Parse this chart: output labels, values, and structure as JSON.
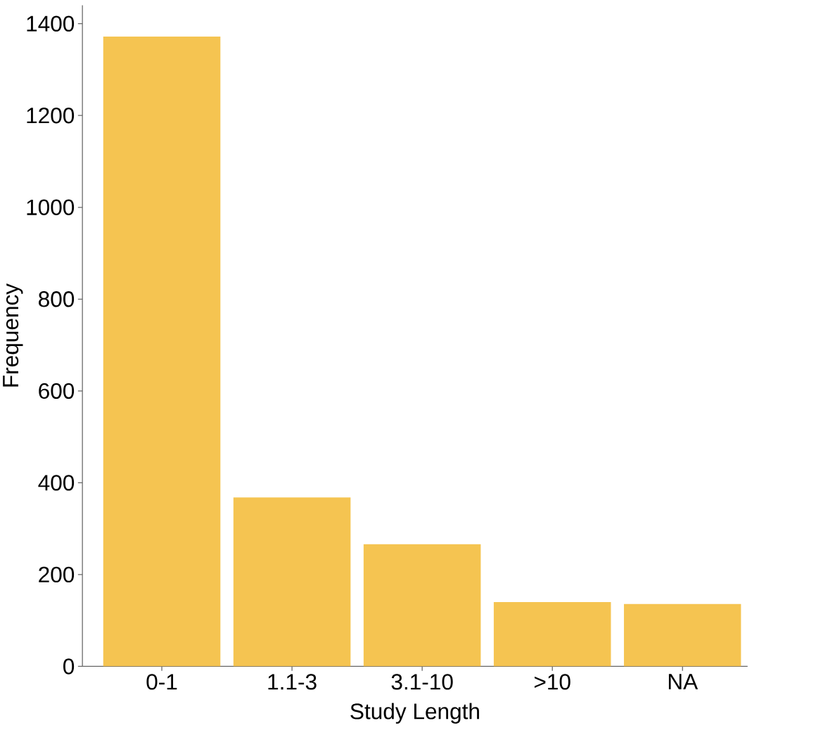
{
  "chart_data": {
    "type": "bar",
    "xlabel": "Study Length",
    "ylabel": "Frequency",
    "categories": [
      "0-1",
      "1.1-3",
      "3.1-10",
      ">10",
      "NA"
    ],
    "values": [
      1372,
      368,
      266,
      140,
      136
    ],
    "color": "#f5c451",
    "ylim": [
      0,
      1440
    ],
    "yticks": [
      0,
      200,
      400,
      600,
      800,
      1000,
      1200,
      1400
    ]
  }
}
